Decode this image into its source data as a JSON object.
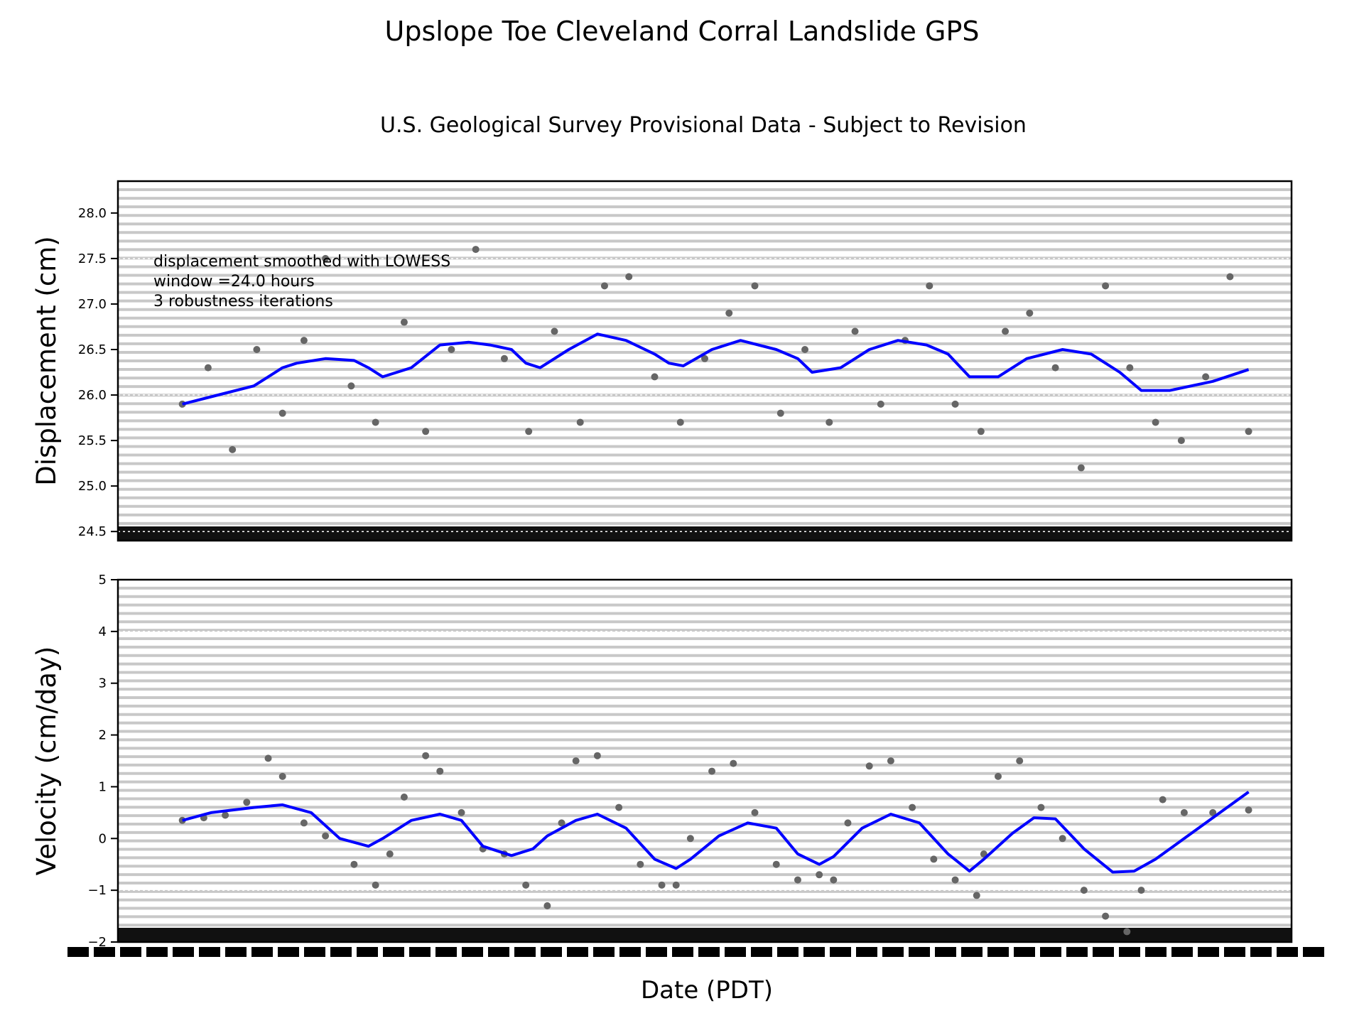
{
  "figure": {
    "title": "Upslope Toe Cleveland Corral Landslide GPS",
    "subtitle": "U.S. Geological Survey Provisional Data - Subject to Revision",
    "xlabel": "Date (PDT)",
    "annotation": [
      "displacement smoothed with LOWESS",
      "window =24.0 hours",
      "3 robustness iterations"
    ]
  },
  "colors": {
    "raw_points": "#666666",
    "smoothed_line": "#0000ff",
    "grid": "#c8c8c8"
  },
  "chart_data": [
    {
      "type": "scatter",
      "ylabel": "Displacement (cm)",
      "ylim": [
        24.4,
        28.35
      ],
      "yticks": [
        24.5,
        25.0,
        25.5,
        26.0,
        26.5,
        27.0,
        27.5,
        28.0
      ],
      "grid": true,
      "xlim": [
        -0.45,
        7.75
      ],
      "series": [
        {
          "kind": "raw",
          "x": [
            0.0,
            0.18,
            0.35,
            0.52,
            0.7,
            0.85,
            1.0,
            1.18,
            1.35,
            1.55,
            1.7,
            1.88,
            2.05,
            2.25,
            2.42,
            2.6,
            2.78,
            2.95,
            3.12,
            3.3,
            3.48,
            3.65,
            3.82,
            4.0,
            4.18,
            4.35,
            4.52,
            4.7,
            4.88,
            5.05,
            5.22,
            5.4,
            5.58,
            5.75,
            5.92,
            6.1,
            6.28,
            6.45,
            6.62,
            6.8,
            6.98,
            7.15,
            7.32,
            7.45
          ],
          "y": [
            25.9,
            26.3,
            25.4,
            26.5,
            25.8,
            26.6,
            27.5,
            26.1,
            25.7,
            26.8,
            25.6,
            26.5,
            27.6,
            26.4,
            25.6,
            26.7,
            25.7,
            27.2,
            27.3,
            26.2,
            25.7,
            26.4,
            26.9,
            27.2,
            25.8,
            26.5,
            25.7,
            26.7,
            25.9,
            26.6,
            27.2,
            25.9,
            25.6,
            26.7,
            26.9,
            26.3,
            25.2,
            27.2,
            26.3,
            25.7,
            25.5,
            26.2,
            27.3,
            25.6
          ]
        },
        {
          "kind": "smoothed",
          "x": [
            0.0,
            0.25,
            0.5,
            0.7,
            0.8,
            1.0,
            1.2,
            1.3,
            1.4,
            1.6,
            1.8,
            2.0,
            2.15,
            2.3,
            2.4,
            2.5,
            2.7,
            2.9,
            3.1,
            3.3,
            3.4,
            3.5,
            3.7,
            3.9,
            4.15,
            4.3,
            4.4,
            4.6,
            4.8,
            5.0,
            5.2,
            5.35,
            5.5,
            5.7,
            5.9,
            6.15,
            6.35,
            6.55,
            6.7,
            6.9,
            7.2,
            7.45
          ],
          "y": [
            25.9,
            26.0,
            26.1,
            26.3,
            26.35,
            26.4,
            26.38,
            26.3,
            26.2,
            26.3,
            26.55,
            26.58,
            26.55,
            26.5,
            26.35,
            26.3,
            26.5,
            26.67,
            26.6,
            26.45,
            26.35,
            26.32,
            26.5,
            26.6,
            26.5,
            26.4,
            26.25,
            26.3,
            26.5,
            26.6,
            26.55,
            26.45,
            26.2,
            26.2,
            26.4,
            26.5,
            26.45,
            26.25,
            26.05,
            26.05,
            26.15,
            26.28
          ]
        }
      ]
    },
    {
      "type": "scatter",
      "ylabel": "Velocity (cm/day)",
      "ylim": [
        -2.0,
        5.0
      ],
      "yticks": [
        -2,
        -1,
        0,
        1,
        2,
        3,
        4,
        5
      ],
      "ytick_labels": [
        "−2",
        "−1",
        "0",
        "1",
        "2",
        "3",
        "4",
        "5"
      ],
      "grid": true,
      "xlim": [
        -0.45,
        7.75
      ],
      "series": [
        {
          "kind": "raw",
          "x": [
            0.0,
            0.15,
            0.3,
            0.45,
            0.6,
            0.7,
            0.85,
            1.0,
            1.2,
            1.35,
            1.45,
            1.55,
            1.7,
            1.8,
            1.95,
            2.1,
            2.25,
            2.4,
            2.55,
            2.65,
            2.75,
            2.9,
            3.05,
            3.2,
            3.35,
            3.45,
            3.55,
            3.7,
            3.85,
            4.0,
            4.15,
            4.3,
            4.45,
            4.55,
            4.65,
            4.8,
            4.95,
            5.1,
            5.25,
            5.4,
            5.55,
            5.6,
            5.7,
            5.85,
            6.0,
            6.15,
            6.3,
            6.45,
            6.6,
            6.7,
            6.85,
            7.0,
            7.2,
            7.45
          ],
          "y": [
            0.35,
            0.4,
            0.45,
            0.7,
            1.55,
            1.2,
            0.3,
            0.05,
            -0.5,
            -0.9,
            -0.3,
            0.8,
            1.6,
            1.3,
            0.5,
            -0.2,
            -0.3,
            -0.9,
            -1.3,
            0.3,
            1.5,
            1.6,
            0.6,
            -0.5,
            -0.9,
            -0.9,
            0.0,
            1.3,
            1.45,
            0.5,
            -0.5,
            -0.8,
            -0.7,
            -0.8,
            0.3,
            1.4,
            1.5,
            0.6,
            -0.4,
            -0.8,
            -1.1,
            -0.3,
            1.2,
            1.5,
            0.6,
            0.0,
            -1.0,
            -1.5,
            -1.8,
            -1.0,
            0.75,
            0.5,
            0.5,
            0.55
          ]
        },
        {
          "kind": "smoothed",
          "x": [
            0.0,
            0.2,
            0.5,
            0.7,
            0.9,
            1.1,
            1.3,
            1.4,
            1.6,
            1.8,
            1.95,
            2.1,
            2.3,
            2.45,
            2.55,
            2.75,
            2.9,
            3.1,
            3.3,
            3.45,
            3.55,
            3.75,
            3.95,
            4.15,
            4.3,
            4.45,
            4.55,
            4.75,
            4.95,
            5.15,
            5.35,
            5.5,
            5.6,
            5.8,
            5.95,
            6.1,
            6.3,
            6.5,
            6.65,
            6.8,
            7.0,
            7.45
          ],
          "y": [
            0.35,
            0.5,
            0.6,
            0.65,
            0.5,
            0.0,
            -0.15,
            0.0,
            0.35,
            0.47,
            0.35,
            -0.15,
            -0.33,
            -0.2,
            0.05,
            0.35,
            0.47,
            0.2,
            -0.4,
            -0.58,
            -0.4,
            0.05,
            0.3,
            0.2,
            -0.3,
            -0.5,
            -0.35,
            0.2,
            0.47,
            0.3,
            -0.3,
            -0.63,
            -0.4,
            0.1,
            0.4,
            0.38,
            -0.2,
            -0.65,
            -0.63,
            -0.4,
            0.0,
            0.9
          ]
        }
      ]
    }
  ]
}
